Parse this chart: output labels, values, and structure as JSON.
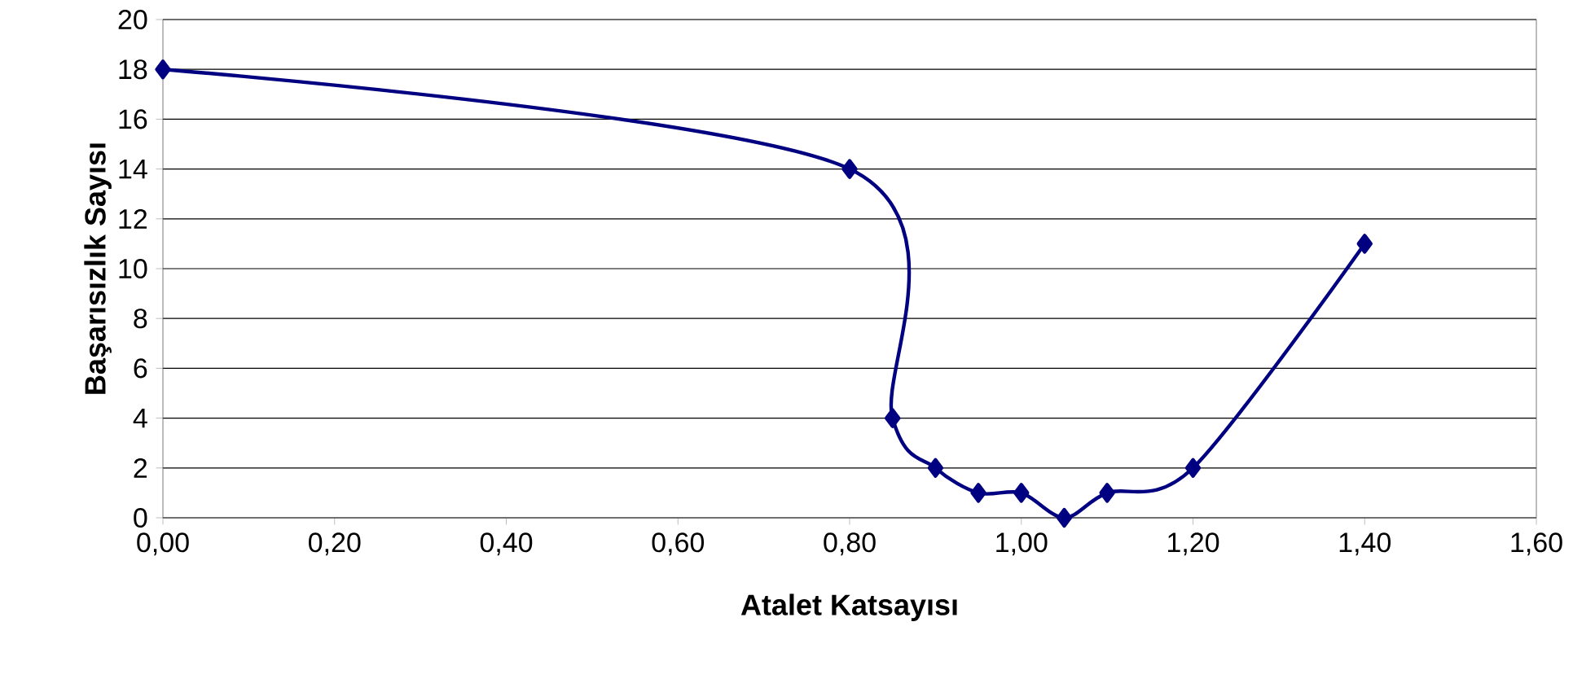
{
  "chart_data": {
    "type": "line",
    "xlabel": "Atalet Katsayısı",
    "ylabel": "Başarısızlık Sayısı",
    "x": [
      0,
      0.8,
      0.85,
      0.9,
      0.95,
      1.0,
      1.05,
      1.1,
      1.2,
      1.4
    ],
    "series": [
      {
        "color": "#000080",
        "values": [
          18,
          14,
          4,
          2,
          1,
          1,
          0,
          1,
          2,
          11
        ]
      }
    ],
    "xlim": [
      0,
      1.6
    ],
    "ylim": [
      0,
      20
    ],
    "xticks": [
      {
        "value": 0,
        "label": "0,00"
      },
      {
        "value": 0.2,
        "label": "0,20"
      },
      {
        "value": 0.4,
        "label": "0,40"
      },
      {
        "value": 0.6,
        "label": "0,60"
      },
      {
        "value": 0.8,
        "label": "0,80"
      },
      {
        "value": 1.0,
        "label": "1,00"
      },
      {
        "value": 1.2,
        "label": "1,20"
      },
      {
        "value": 1.4,
        "label": "1,40"
      },
      {
        "value": 1.6,
        "label": "1,60"
      }
    ],
    "yticks": [
      0,
      2,
      4,
      6,
      8,
      10,
      12,
      14,
      16,
      18,
      20
    ],
    "grid": "y",
    "marker": "diamond",
    "line_style": "solid"
  }
}
